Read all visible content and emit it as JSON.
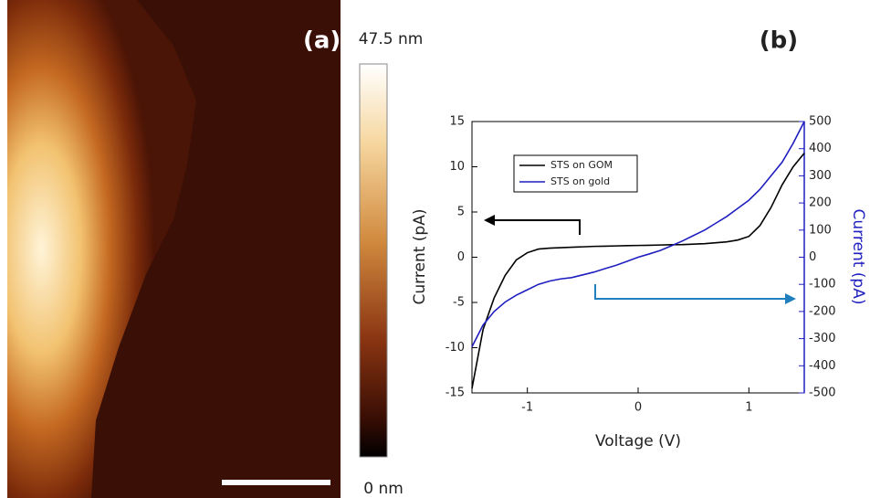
{
  "panel_a": {
    "label": "(a)",
    "colorbar_max": "47.5 nm",
    "colorbar_min": "0 nm"
  },
  "chart_data": {
    "type": "line",
    "title": "(b)",
    "x_label": "Voltage (V)",
    "y_label": "Current (pA)",
    "y2_label": "Current (pA)",
    "x": [
      -1.5,
      -1.4,
      -1.3,
      -1.2,
      -1.1,
      -1.0,
      -0.9,
      -0.8,
      -0.7,
      -0.6,
      -0.5,
      -0.4,
      -0.3,
      -0.2,
      -0.1,
      0,
      0.1,
      0.2,
      0.3,
      0.4,
      0.5,
      0.6,
      0.7,
      0.8,
      0.9,
      1.0,
      1.1,
      1.2,
      1.3,
      1.4,
      1.5
    ],
    "series": [
      {
        "name": "STS on GOM",
        "color": "#000000",
        "values": [
          -14.5,
          -8,
          -4.5,
          -2,
          -0.3,
          0.5,
          0.9,
          1.0,
          1.05,
          1.1,
          1.15,
          1.2,
          1.22,
          1.25,
          1.28,
          1.3,
          1.32,
          1.35,
          1.38,
          1.4,
          1.45,
          1.5,
          1.6,
          1.7,
          1.9,
          2.3,
          3.5,
          5.5,
          8,
          10,
          11.5
        ]
      },
      {
        "name": "STS on gold",
        "color": "#1f1fbf",
        "axis": "y2",
        "values": [
          -330,
          -250,
          -200,
          -165,
          -140,
          -120,
          -100,
          -88,
          -80,
          -75,
          -65,
          -55,
          -42,
          -30,
          -15,
          0,
          12,
          25,
          42,
          60,
          80,
          100,
          125,
          150,
          180,
          210,
          250,
          300,
          350,
          420,
          500
        ]
      }
    ],
    "xlim": [
      -1.5,
      1.5
    ],
    "xticks": [
      -1,
      0,
      1
    ],
    "ylim": [
      -15,
      15
    ],
    "yticks": [
      -15,
      -10,
      -5,
      0,
      5,
      10,
      15
    ],
    "y2lim": [
      -500,
      500
    ],
    "y2ticks": [
      -500,
      -400,
      -300,
      -200,
      -100,
      0,
      100,
      200,
      300,
      400,
      500
    ],
    "legend": "upper left"
  }
}
